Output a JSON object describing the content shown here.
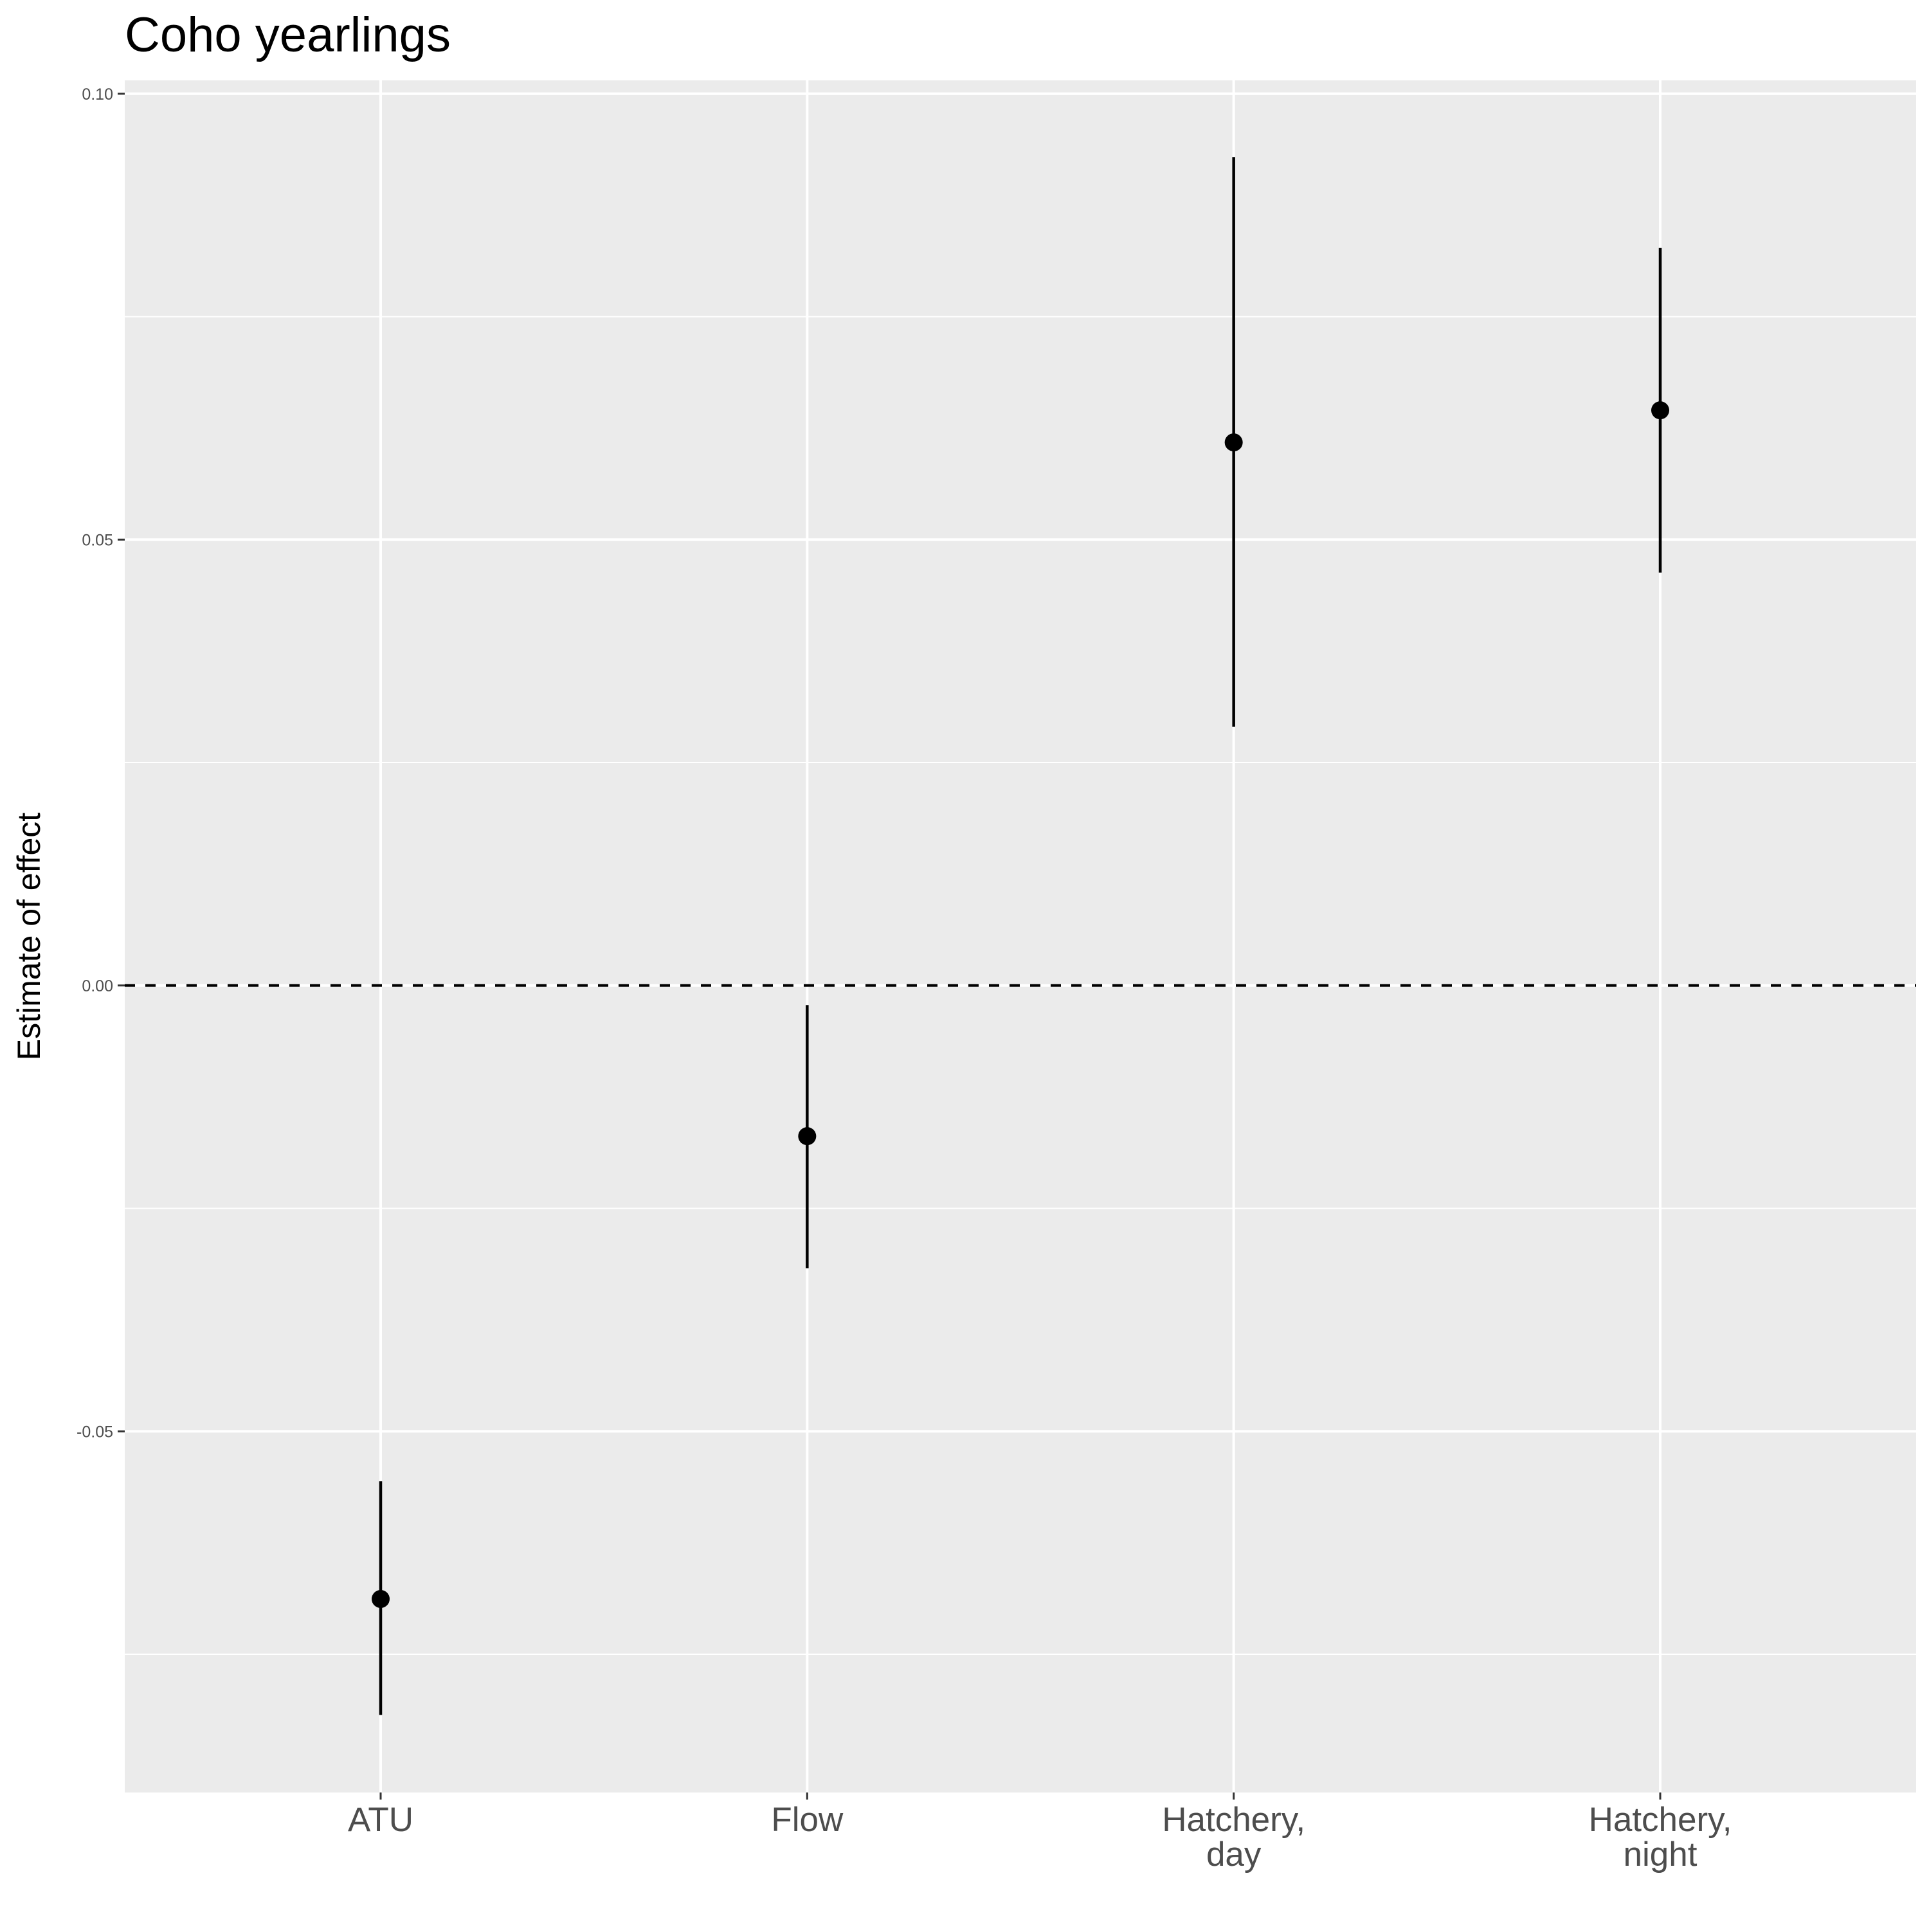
{
  "chart_data": {
    "type": "scatter",
    "subtype": "pointrange",
    "title": "Coho yearlings",
    "xlabel": "",
    "ylabel": "Estimate of effect",
    "categories": [
      [
        "ATU"
      ],
      [
        "Flow"
      ],
      [
        "Hatchery,",
        "day"
      ],
      [
        "Hatchery,",
        "night"
      ]
    ],
    "estimates": [
      -0.0688,
      -0.0169,
      0.0609,
      0.0645
    ],
    "lower": [
      -0.0818,
      -0.0317,
      0.029,
      0.0463
    ],
    "upper": [
      -0.0556,
      -0.0022,
      0.0929,
      0.0827
    ],
    "ylim": [
      -0.0905,
      0.1015
    ],
    "yticks": [
      -0.05,
      0.0,
      0.05,
      0.1
    ],
    "ytick_labels": [
      "-0.05",
      "0.00",
      "0.05",
      "0.10"
    ],
    "reference_line": {
      "y": 0,
      "style": "dashed"
    },
    "grid": true,
    "legend": "none",
    "colors": {
      "panel_background": "#ebebeb",
      "grid": "#ffffff",
      "point": "#000000",
      "tick_text": "#4d4d4d"
    }
  }
}
